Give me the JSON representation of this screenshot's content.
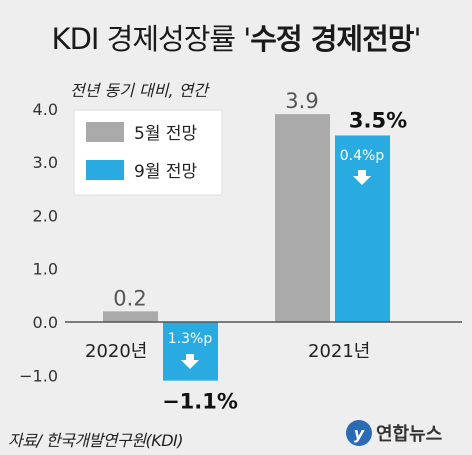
{
  "title": {
    "plain": "KDI 경제성장률 '",
    "bold": "수정 경제전망",
    "end": "'"
  },
  "subtitle": "전년 동기 대비, 연간",
  "source": "자료/ 한국개발연구원(KDI)",
  "logo_text": "연합뉴스",
  "chart_data": {
    "type": "bar",
    "categories": [
      "2020년",
      "2021년"
    ],
    "series": [
      {
        "name": "5월 전망",
        "values": [
          0.2,
          3.9
        ],
        "labels": [
          "0.2",
          "3.9"
        ],
        "color": "#aaaaaa"
      },
      {
        "name": "9월 전망",
        "values": [
          -1.1,
          3.5
        ],
        "labels": [
          "−1.1%",
          "3.5%"
        ],
        "color": "#29abe2"
      }
    ],
    "changes": [
      "1.3%p",
      "0.4%p"
    ],
    "ylim": [
      -1.0,
      4.0
    ],
    "yticks": [
      "−1.0",
      "0.0",
      "1.0",
      "2.0",
      "3.0",
      "4.0"
    ],
    "ytick_values": [
      -1.0,
      0.0,
      1.0,
      2.0,
      3.0,
      4.0
    ],
    "legend_position": "top-left",
    "grid": false
  }
}
